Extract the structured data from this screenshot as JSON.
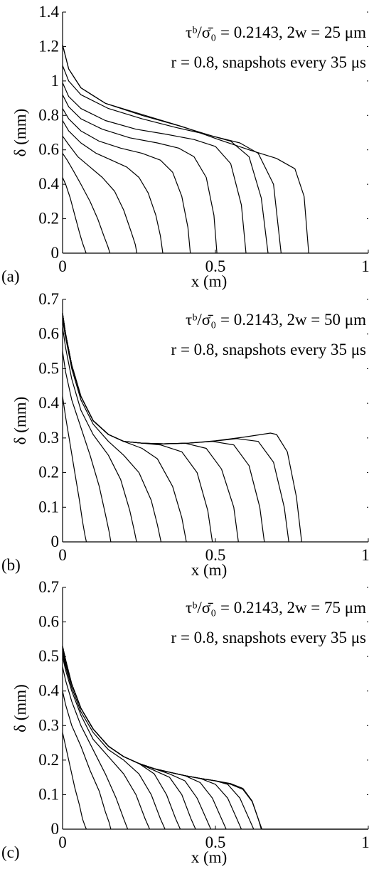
{
  "chart_data": [
    {
      "type": "line",
      "panel_label": "(a)",
      "annotation_line1": "τᵇ/σ̄₀ = 0.2143,  2w = 25 μm",
      "annotation_line2": "r = 0.8,  snapshots every 35 μs",
      "xlabel": "x (m)",
      "ylabel": "δ (mm)",
      "xlim": [
        0,
        1
      ],
      "ylim": [
        0,
        1.4
      ],
      "xticks": [
        "0",
        "0.5",
        "1"
      ],
      "yticks": [
        "0",
        "0.2",
        "0.4",
        "0.6",
        "0.8",
        "1",
        "1.2",
        "1.4"
      ],
      "grid": false,
      "series": [
        {
          "x": [
            0,
            0.01,
            0.025,
            0.04,
            0.055,
            0.065,
            0.073,
            0.077
          ],
          "y": [
            0.44,
            0.4,
            0.32,
            0.22,
            0.12,
            0.06,
            0.02,
            0
          ]
        },
        {
          "x": [
            0,
            0.015,
            0.035,
            0.06,
            0.09,
            0.115,
            0.135,
            0.148,
            0.155
          ],
          "y": [
            0.58,
            0.54,
            0.48,
            0.4,
            0.3,
            0.2,
            0.1,
            0.04,
            0
          ]
        },
        {
          "x": [
            0,
            0.02,
            0.05,
            0.09,
            0.13,
            0.17,
            0.2,
            0.225,
            0.238,
            0.243
          ],
          "y": [
            0.68,
            0.63,
            0.56,
            0.5,
            0.44,
            0.36,
            0.25,
            0.12,
            0.05,
            0
          ]
        },
        {
          "x": [
            0,
            0.02,
            0.06,
            0.11,
            0.16,
            0.21,
            0.25,
            0.28,
            0.305,
            0.32,
            0.328
          ],
          "y": [
            0.77,
            0.71,
            0.64,
            0.58,
            0.54,
            0.5,
            0.44,
            0.35,
            0.22,
            0.1,
            0
          ]
        },
        {
          "x": [
            0,
            0.02,
            0.06,
            0.12,
            0.19,
            0.26,
            0.32,
            0.36,
            0.39,
            0.41,
            0.418
          ],
          "y": [
            0.84,
            0.78,
            0.71,
            0.65,
            0.61,
            0.58,
            0.54,
            0.47,
            0.33,
            0.15,
            0
          ]
        },
        {
          "x": [
            0,
            0.02,
            0.06,
            0.13,
            0.22,
            0.31,
            0.38,
            0.43,
            0.47,
            0.495,
            0.505
          ],
          "y": [
            0.92,
            0.85,
            0.78,
            0.72,
            0.67,
            0.64,
            0.61,
            0.56,
            0.44,
            0.22,
            0
          ]
        },
        {
          "x": [
            0,
            0.02,
            0.06,
            0.14,
            0.24,
            0.34,
            0.43,
            0.5,
            0.55,
            0.585,
            0.6
          ],
          "y": [
            0.99,
            0.91,
            0.84,
            0.77,
            0.72,
            0.69,
            0.66,
            0.62,
            0.52,
            0.28,
            0
          ]
        },
        {
          "x": [
            0,
            0.02,
            0.06,
            0.15,
            0.26,
            0.37,
            0.47,
            0.55,
            0.61,
            0.65,
            0.672
          ],
          "y": [
            1.09,
            1.0,
            0.92,
            0.84,
            0.78,
            0.73,
            0.69,
            0.65,
            0.56,
            0.32,
            0
          ]
        },
        {
          "x": [
            0,
            0.02,
            0.06,
            0.14,
            0.26,
            0.38,
            0.49,
            0.58,
            0.64,
            0.69,
            0.715
          ],
          "y": [
            1.21,
            1.07,
            0.96,
            0.87,
            0.8,
            0.74,
            0.68,
            0.64,
            0.58,
            0.4,
            0
          ]
        },
        {
          "x": [
            0,
            0.02,
            0.06,
            0.14,
            0.27,
            0.4,
            0.51,
            0.61,
            0.7,
            0.76,
            0.79,
            0.805
          ],
          "y": [
            1.21,
            1.07,
            0.96,
            0.87,
            0.8,
            0.73,
            0.66,
            0.6,
            0.55,
            0.49,
            0.33,
            0
          ]
        }
      ]
    },
    {
      "type": "line",
      "panel_label": "(b)",
      "annotation_line1": "τᵇ/σ̄₀ = 0.2143,  2w = 50 μm",
      "annotation_line2": "r = 0.8,  snapshots every 35 μs",
      "xlabel": "x (m)",
      "ylabel": "δ (mm)",
      "xlim": [
        0,
        1
      ],
      "ylim": [
        0,
        0.7
      ],
      "xticks": [
        "0",
        "0.5",
        "1"
      ],
      "yticks": [
        "0",
        "0.1",
        "0.2",
        "0.3",
        "0.4",
        "0.5",
        "0.6",
        "0.7"
      ],
      "grid": false,
      "series": [
        {
          "x": [
            0,
            0.01,
            0.025,
            0.04,
            0.055,
            0.065,
            0.073,
            0.078
          ],
          "y": [
            0.42,
            0.36,
            0.28,
            0.2,
            0.12,
            0.06,
            0.02,
            0
          ]
        },
        {
          "x": [
            0,
            0.01,
            0.03,
            0.06,
            0.09,
            0.12,
            0.14,
            0.152,
            0.158
          ],
          "y": [
            0.55,
            0.49,
            0.41,
            0.33,
            0.25,
            0.16,
            0.08,
            0.03,
            0
          ]
        },
        {
          "x": [
            0,
            0.01,
            0.03,
            0.06,
            0.1,
            0.15,
            0.19,
            0.22,
            0.235,
            0.242
          ],
          "y": [
            0.62,
            0.56,
            0.47,
            0.38,
            0.31,
            0.25,
            0.18,
            0.09,
            0.03,
            0
          ]
        },
        {
          "x": [
            0,
            0.01,
            0.03,
            0.06,
            0.1,
            0.15,
            0.2,
            0.25,
            0.29,
            0.31,
            0.322
          ],
          "y": [
            0.64,
            0.59,
            0.5,
            0.41,
            0.34,
            0.29,
            0.25,
            0.2,
            0.12,
            0.05,
            0
          ]
        },
        {
          "x": [
            0,
            0.01,
            0.03,
            0.06,
            0.1,
            0.15,
            0.2,
            0.26,
            0.31,
            0.36,
            0.39,
            0.405
          ],
          "y": [
            0.65,
            0.6,
            0.51,
            0.42,
            0.35,
            0.31,
            0.29,
            0.27,
            0.24,
            0.16,
            0.07,
            0
          ]
        },
        {
          "x": [
            0,
            0.01,
            0.03,
            0.06,
            0.1,
            0.15,
            0.2,
            0.26,
            0.32,
            0.39,
            0.44,
            0.475,
            0.49
          ],
          "y": [
            0.65,
            0.6,
            0.51,
            0.42,
            0.35,
            0.31,
            0.29,
            0.285,
            0.28,
            0.26,
            0.2,
            0.09,
            0
          ]
        },
        {
          "x": [
            0,
            0.01,
            0.03,
            0.06,
            0.1,
            0.15,
            0.2,
            0.26,
            0.33,
            0.4,
            0.47,
            0.52,
            0.56,
            0.575
          ],
          "y": [
            0.66,
            0.6,
            0.51,
            0.42,
            0.35,
            0.31,
            0.29,
            0.285,
            0.283,
            0.285,
            0.27,
            0.21,
            0.1,
            0
          ]
        },
        {
          "x": [
            0,
            0.01,
            0.03,
            0.06,
            0.1,
            0.15,
            0.2,
            0.26,
            0.33,
            0.41,
            0.49,
            0.56,
            0.61,
            0.645,
            0.66
          ],
          "y": [
            0.66,
            0.6,
            0.51,
            0.42,
            0.35,
            0.31,
            0.29,
            0.285,
            0.283,
            0.285,
            0.29,
            0.28,
            0.22,
            0.1,
            0
          ]
        },
        {
          "x": [
            0,
            0.01,
            0.03,
            0.06,
            0.1,
            0.15,
            0.2,
            0.26,
            0.33,
            0.41,
            0.49,
            0.57,
            0.64,
            0.69,
            0.725,
            0.74
          ],
          "y": [
            0.66,
            0.6,
            0.51,
            0.42,
            0.35,
            0.31,
            0.29,
            0.285,
            0.283,
            0.285,
            0.29,
            0.298,
            0.29,
            0.23,
            0.1,
            0
          ]
        },
        {
          "x": [
            0,
            0.01,
            0.03,
            0.06,
            0.1,
            0.15,
            0.2,
            0.26,
            0.33,
            0.41,
            0.5,
            0.59,
            0.65,
            0.68,
            0.7,
            0.735,
            0.765,
            0.782
          ],
          "y": [
            0.66,
            0.6,
            0.51,
            0.42,
            0.35,
            0.31,
            0.29,
            0.285,
            0.283,
            0.285,
            0.292,
            0.302,
            0.31,
            0.314,
            0.31,
            0.26,
            0.13,
            0
          ]
        }
      ]
    },
    {
      "type": "line",
      "panel_label": "(c)",
      "annotation_line1": "τᵇ/σ̄₀ = 0.2143,  2w = 75 μm",
      "annotation_line2": "r = 0.8,  snapshots every 35 μs",
      "xlabel": "x (m)",
      "ylabel": "δ (mm)",
      "xlim": [
        0,
        1
      ],
      "ylim": [
        0,
        0.7
      ],
      "xticks": [
        "0",
        "0.5",
        "1"
      ],
      "yticks": [
        "0",
        "0.1",
        "0.2",
        "0.3",
        "0.4",
        "0.5",
        "0.6",
        "0.7"
      ],
      "grid": false,
      "series": [
        {
          "x": [
            0,
            0.01,
            0.025,
            0.04,
            0.055,
            0.065,
            0.073,
            0.078
          ],
          "y": [
            0.28,
            0.24,
            0.18,
            0.12,
            0.07,
            0.03,
            0.01,
            0
          ]
        },
        {
          "x": [
            0,
            0.01,
            0.03,
            0.06,
            0.09,
            0.12,
            0.14,
            0.152,
            0.158
          ],
          "y": [
            0.4,
            0.36,
            0.3,
            0.24,
            0.17,
            0.11,
            0.05,
            0.02,
            0
          ]
        },
        {
          "x": [
            0,
            0.01,
            0.03,
            0.06,
            0.1,
            0.14,
            0.175,
            0.2,
            0.213
          ],
          "y": [
            0.47,
            0.43,
            0.37,
            0.3,
            0.23,
            0.16,
            0.09,
            0.03,
            0
          ]
        },
        {
          "x": [
            0,
            0.01,
            0.03,
            0.06,
            0.1,
            0.15,
            0.2,
            0.24,
            0.27,
            0.285
          ],
          "y": [
            0.5,
            0.46,
            0.4,
            0.33,
            0.26,
            0.21,
            0.16,
            0.1,
            0.03,
            0
          ]
        },
        {
          "x": [
            0,
            0.01,
            0.03,
            0.06,
            0.1,
            0.15,
            0.2,
            0.25,
            0.29,
            0.32,
            0.335
          ],
          "y": [
            0.51,
            0.47,
            0.41,
            0.34,
            0.28,
            0.23,
            0.2,
            0.16,
            0.1,
            0.03,
            0
          ]
        },
        {
          "x": [
            0,
            0.01,
            0.03,
            0.06,
            0.1,
            0.15,
            0.2,
            0.25,
            0.3,
            0.34,
            0.37,
            0.385
          ],
          "y": [
            0.52,
            0.48,
            0.42,
            0.35,
            0.29,
            0.24,
            0.21,
            0.19,
            0.16,
            0.1,
            0.03,
            0
          ]
        },
        {
          "x": [
            0,
            0.01,
            0.03,
            0.06,
            0.1,
            0.15,
            0.2,
            0.25,
            0.3,
            0.35,
            0.39,
            0.42,
            0.435
          ],
          "y": [
            0.52,
            0.48,
            0.42,
            0.35,
            0.29,
            0.24,
            0.21,
            0.19,
            0.17,
            0.15,
            0.1,
            0.03,
            0
          ]
        },
        {
          "x": [
            0,
            0.01,
            0.03,
            0.06,
            0.1,
            0.15,
            0.2,
            0.25,
            0.3,
            0.35,
            0.4,
            0.44,
            0.47,
            0.485
          ],
          "y": [
            0.52,
            0.48,
            0.42,
            0.35,
            0.29,
            0.24,
            0.21,
            0.19,
            0.175,
            0.16,
            0.14,
            0.09,
            0.03,
            0
          ]
        },
        {
          "x": [
            0,
            0.01,
            0.03,
            0.06,
            0.1,
            0.15,
            0.2,
            0.25,
            0.3,
            0.35,
            0.4,
            0.45,
            0.49,
            0.52,
            0.535
          ],
          "y": [
            0.52,
            0.48,
            0.42,
            0.35,
            0.29,
            0.24,
            0.21,
            0.19,
            0.175,
            0.165,
            0.155,
            0.135,
            0.09,
            0.03,
            0
          ]
        },
        {
          "x": [
            0,
            0.01,
            0.03,
            0.06,
            0.1,
            0.15,
            0.2,
            0.25,
            0.3,
            0.35,
            0.4,
            0.45,
            0.5,
            0.54,
            0.57,
            0.585
          ],
          "y": [
            0.52,
            0.48,
            0.42,
            0.35,
            0.29,
            0.24,
            0.21,
            0.19,
            0.175,
            0.165,
            0.155,
            0.147,
            0.13,
            0.09,
            0.03,
            0
          ]
        },
        {
          "x": [
            0,
            0.01,
            0.03,
            0.06,
            0.1,
            0.15,
            0.2,
            0.25,
            0.3,
            0.35,
            0.4,
            0.45,
            0.5,
            0.54,
            0.58,
            0.61,
            0.625
          ],
          "y": [
            0.53,
            0.49,
            0.42,
            0.35,
            0.29,
            0.24,
            0.21,
            0.19,
            0.175,
            0.165,
            0.155,
            0.147,
            0.14,
            0.13,
            0.09,
            0.03,
            0
          ]
        },
        {
          "x": [
            0,
            0.01,
            0.03,
            0.06,
            0.1,
            0.15,
            0.2,
            0.25,
            0.3,
            0.35,
            0.4,
            0.45,
            0.5,
            0.55,
            0.59,
            0.62,
            0.64,
            0.65
          ],
          "y": [
            0.53,
            0.49,
            0.42,
            0.35,
            0.29,
            0.24,
            0.21,
            0.19,
            0.175,
            0.165,
            0.155,
            0.147,
            0.14,
            0.13,
            0.115,
            0.08,
            0.03,
            0
          ]
        },
        {
          "x": [
            0,
            0.01,
            0.03,
            0.06,
            0.1,
            0.15,
            0.2,
            0.25,
            0.3,
            0.35,
            0.4,
            0.45,
            0.5,
            0.55,
            0.59,
            0.62,
            0.64,
            0.652,
            0.7,
            0.8,
            0.9,
            1.0
          ],
          "y": [
            0.53,
            0.49,
            0.42,
            0.35,
            0.29,
            0.24,
            0.21,
            0.19,
            0.175,
            0.165,
            0.155,
            0.147,
            0.14,
            0.132,
            0.118,
            0.082,
            0.03,
            0,
            0,
            0,
            0,
            0
          ]
        }
      ]
    }
  ]
}
